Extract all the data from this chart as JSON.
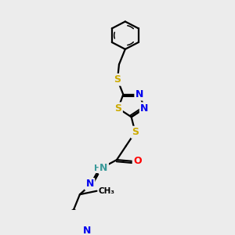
{
  "bg_color": "#ececec",
  "atom_colors": {
    "S": "#ccaa00",
    "N": "#0000ee",
    "O": "#ff0000",
    "NH": "#3a9a9a",
    "C": "#000000"
  },
  "bond_color": "#000000",
  "lw": 1.6,
  "fs": 9.0
}
